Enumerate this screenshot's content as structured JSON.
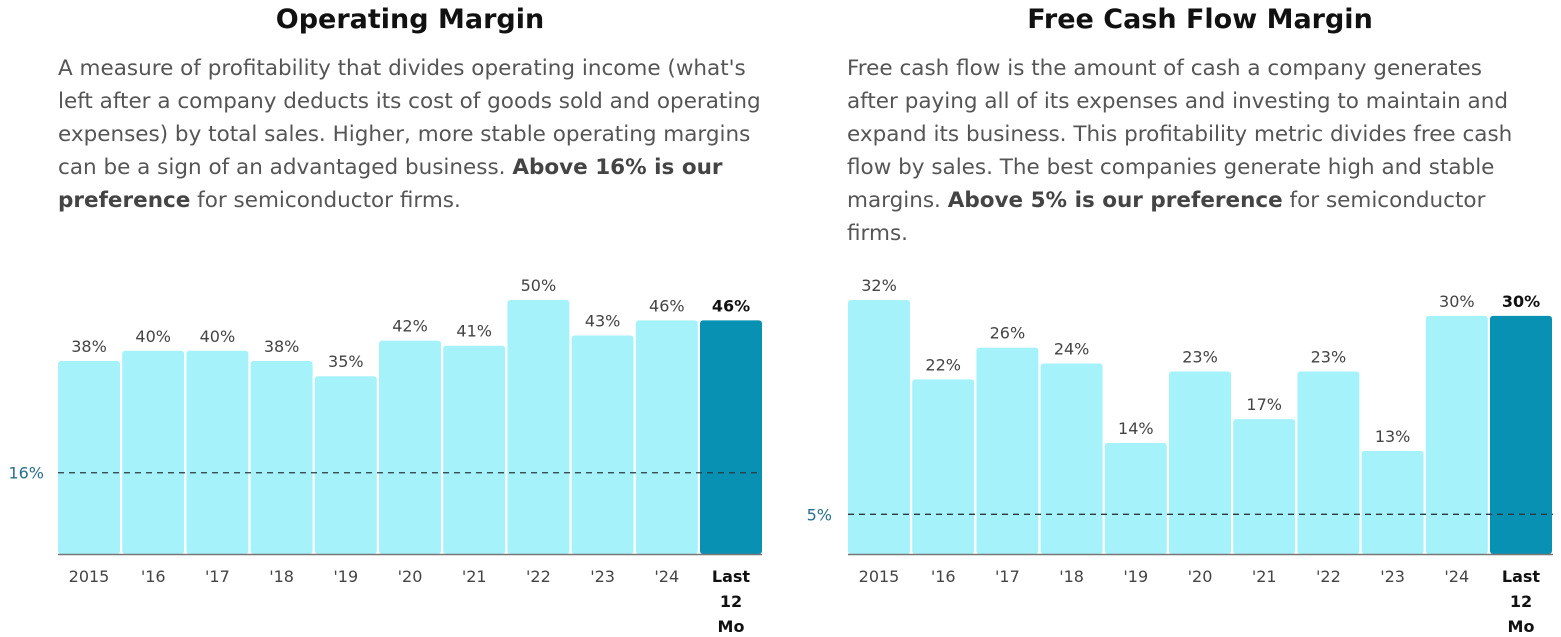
{
  "chart_data": [
    {
      "type": "bar",
      "title": "Operating Margin",
      "description_parts": [
        "A measure of profitability that divides operating income (what's left after a company deducts its cost of goods sold and operating expenses) by total sales. Higher, more stable operating margins can be a sign of an advantaged business. ",
        "Above 16% is our preference",
        " for semiconductor firms."
      ],
      "categories": [
        "2015",
        "'16",
        "'17",
        "'18",
        "'19",
        "'20",
        "'21",
        "'22",
        "'23",
        "'24",
        [
          "Last",
          "12",
          "Mo"
        ]
      ],
      "values": [
        38,
        40,
        40,
        38,
        35,
        42,
        41,
        50,
        43,
        46,
        46
      ],
      "value_labels": [
        "38%",
        "40%",
        "40%",
        "38%",
        "35%",
        "42%",
        "41%",
        "50%",
        "43%",
        "46%",
        "46%"
      ],
      "reference_line": {
        "value": 16,
        "label": "16%"
      },
      "ylim": [
        0,
        50
      ],
      "colors": {
        "bar": "#a6f2fb",
        "last_bar": "#0891b2",
        "ref_line": "#2b3a40",
        "ref_label": "#2a6f8e"
      }
    },
    {
      "type": "bar",
      "title": "Free Cash Flow Margin",
      "description_parts": [
        "Free cash flow is the amount of cash a company generates after paying all of its expenses and investing to maintain and expand its business. This profitability metric divides free cash flow by sales. The best companies generate high and stable margins. ",
        "Above 5% is our preference",
        " for semiconductor firms."
      ],
      "categories": [
        "2015",
        "'16",
        "'17",
        "'18",
        "'19",
        "'20",
        "'21",
        "'22",
        "'23",
        "'24",
        [
          "Last",
          "12",
          "Mo"
        ]
      ],
      "values": [
        32,
        22,
        26,
        24,
        14,
        23,
        17,
        23,
        13,
        30,
        30
      ],
      "value_labels": [
        "32%",
        "22%",
        "26%",
        "24%",
        "14%",
        "23%",
        "17%",
        "23%",
        "13%",
        "30%",
        "30%"
      ],
      "reference_line": {
        "value": 5,
        "label": "5%"
      },
      "ylim": [
        0,
        32
      ],
      "colors": {
        "bar": "#a6f2fb",
        "last_bar": "#0891b2",
        "ref_line": "#2b3a40",
        "ref_label": "#2a6f8e"
      }
    }
  ]
}
